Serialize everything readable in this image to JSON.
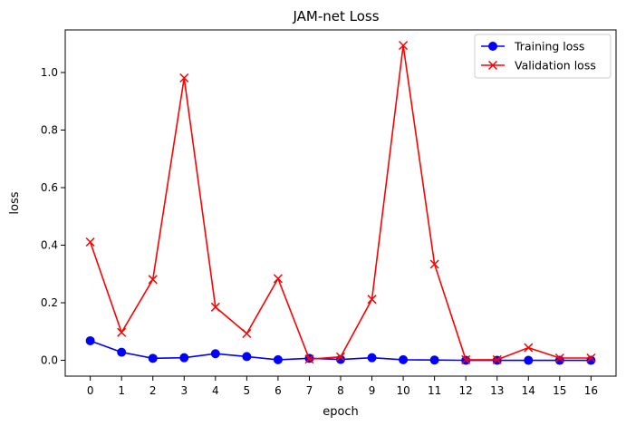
{
  "chart_data": {
    "type": "line",
    "title": "JAM-net Loss",
    "xlabel": "epoch",
    "ylabel": "loss",
    "x": [
      0,
      1,
      2,
      3,
      4,
      5,
      6,
      7,
      8,
      9,
      10,
      11,
      12,
      13,
      14,
      15,
      16
    ],
    "xticks": [
      "0",
      "1",
      "2",
      "3",
      "4",
      "5",
      "6",
      "7",
      "8",
      "9",
      "10",
      "11",
      "12",
      "13",
      "14",
      "15",
      "16"
    ],
    "yticks": [
      "0.0",
      "0.2",
      "0.4",
      "0.6",
      "0.8",
      "1.0"
    ],
    "ytick_values": [
      0.0,
      0.2,
      0.4,
      0.6,
      0.8,
      1.0
    ],
    "xlim": [
      -0.8,
      16.8
    ],
    "ylim": [
      -0.055,
      1.148
    ],
    "grid": false,
    "legend_position": "top-right",
    "series": [
      {
        "name": "Training loss",
        "color": "#0000ff",
        "marker": "circle",
        "values": [
          0.068,
          0.028,
          0.007,
          0.009,
          0.023,
          0.013,
          0.002,
          0.007,
          0.003,
          0.009,
          0.002,
          0.001,
          0.0,
          0.0,
          0.0,
          0.0,
          0.0
        ]
      },
      {
        "name": "Validation loss",
        "color": "#ff0000",
        "marker": "x",
        "values": [
          0.411,
          0.097,
          0.281,
          0.981,
          0.185,
          0.093,
          0.284,
          0.004,
          0.012,
          0.212,
          1.094,
          0.334,
          0.002,
          0.002,
          0.044,
          0.008,
          0.008
        ]
      }
    ]
  }
}
